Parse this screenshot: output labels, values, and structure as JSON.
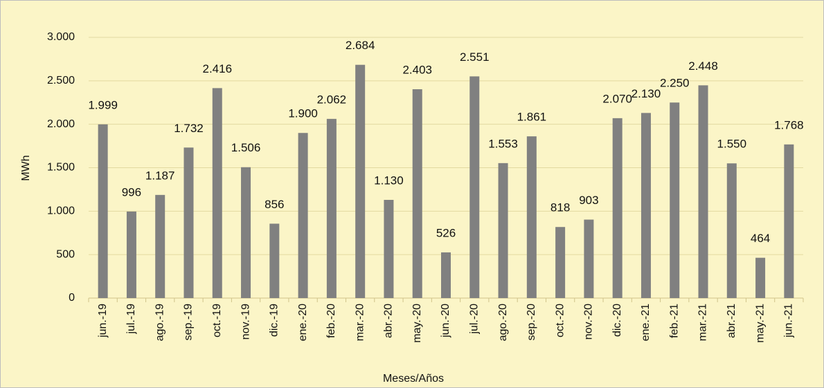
{
  "chart_data": {
    "type": "bar",
    "x_label": "Meses/Años",
    "y_label": "MWh",
    "categories": [
      "jun.-19",
      "jul.-19",
      "ago.-19",
      "sep.-19",
      "oct.-19",
      "nov.-19",
      "dic.-19",
      "ene.-20",
      "feb.-20",
      "mar.-20",
      "abr.-20",
      "may.-20",
      "jun.-20",
      "jul.-20",
      "ago.-20",
      "sep.-20",
      "oct.-20",
      "nov.-20",
      "dic.-20",
      "ene.-21",
      "feb.-21",
      "mar.-21",
      "abr.-21",
      "may.-21",
      "jun.-21"
    ],
    "values": [
      1999,
      996,
      1187,
      1732,
      2416,
      1506,
      856,
      1900,
      2062,
      2684,
      1130,
      2403,
      526,
      2551,
      1553,
      1861,
      818,
      903,
      2070,
      2130,
      2250,
      2448,
      1550,
      464,
      1768
    ],
    "value_labels": [
      "1.999",
      "996",
      "1.187",
      "1.732",
      "2.416",
      "1.506",
      "856",
      "1.900",
      "2.062",
      "2.684",
      "1.130",
      "2.403",
      "526",
      "2.551",
      "1.553",
      "1.861",
      "818",
      "903",
      "2.070",
      "2.130",
      "2.250",
      "2.448",
      "1.550",
      "464",
      "1.768"
    ],
    "color": "#808080",
    "ylim": [
      0,
      3000
    ],
    "yticks": [
      0,
      500,
      {
        "value": 1000,
        "label": "1.000"
      },
      {
        "value": 1500,
        "label": "1.500"
      },
      {
        "value": 2000,
        "label": "2.000"
      },
      {
        "value": 2500,
        "label": "2.500"
      },
      {
        "value": 3000,
        "label": "3.000"
      }
    ],
    "grid": true
  }
}
